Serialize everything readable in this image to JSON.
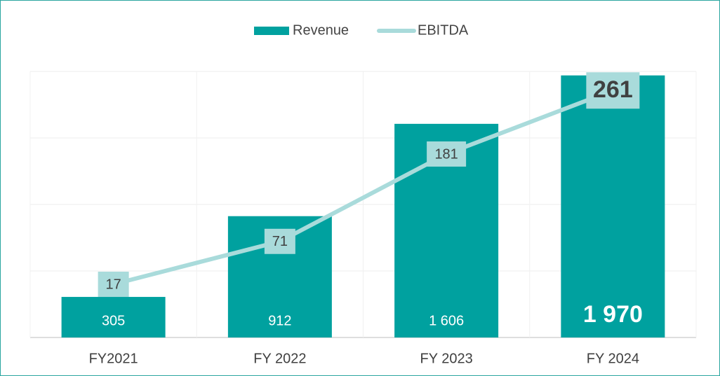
{
  "chart_data": {
    "type": "bar_line",
    "categories": [
      "FY2021",
      "FY 2022",
      "FY 2023",
      "FY 2024"
    ],
    "series": [
      {
        "name": "Revenue",
        "type": "bar",
        "color": "#00a19f",
        "values": [
          305,
          912,
          1606,
          1970
        ],
        "value_labels": [
          "305",
          "912",
          "1 606",
          "1 970"
        ]
      },
      {
        "name": "EBITDA",
        "type": "line",
        "axis": "y2",
        "color": "#a9dbdb",
        "values": [
          17,
          71,
          181,
          261
        ]
      }
    ],
    "ylim": [
      0,
      2000
    ],
    "yticks": [
      0,
      500,
      1000,
      1500,
      2000
    ],
    "y2lim": [
      -50,
      285
    ],
    "grid": true,
    "legend": "top"
  }
}
